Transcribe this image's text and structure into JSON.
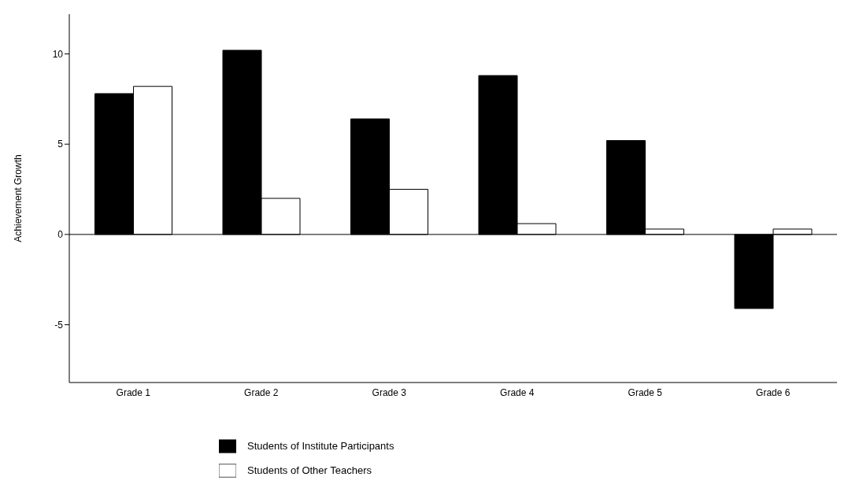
{
  "chart_data": {
    "type": "bar",
    "ylabel": "Achievement Growth",
    "categories": [
      "Grade 1",
      "Grade 2",
      "Grade 3",
      "Grade 4",
      "Grade 5",
      "Grade 6"
    ],
    "series": [
      {
        "name": "Students of Institute Participants",
        "color": "#000000",
        "values": [
          7.8,
          10.2,
          6.4,
          8.8,
          5.2,
          -4.1
        ]
      },
      {
        "name": "Students of Other Teachers",
        "color": "#ffffff",
        "values": [
          8.2,
          2.0,
          2.5,
          0.6,
          0.3,
          0.3
        ]
      }
    ],
    "ylim": [
      -8.2,
      12.2
    ],
    "yticks": [
      -5,
      0,
      5,
      10
    ],
    "grid": false,
    "legend": "bottom",
    "ref_lines": [
      {
        "axis": "y",
        "value": 0,
        "color": "#000000"
      }
    ]
  }
}
